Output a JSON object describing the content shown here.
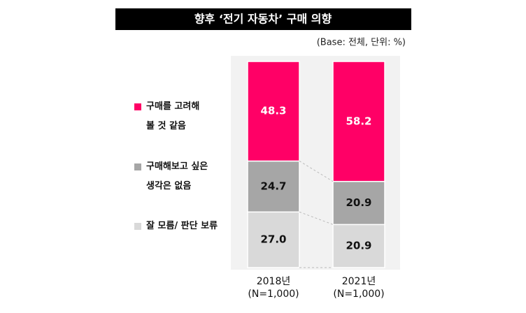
{
  "chart_data": {
    "type": "stacked_bar",
    "title": "향후 ‘전기 자동차’ 구매 의향",
    "subtitle": "(Base: 전체, 단위: %)",
    "categories": [
      "2018년\n(N=1,000)",
      "2021년\n(N=1,000)"
    ],
    "series": [
      {
        "name": "구매를 고려해\n볼 것 같음",
        "color": "#ff0066",
        "values": [
          48.3,
          58.2
        ],
        "value_labels": [
          "48.3",
          "58.2"
        ]
      },
      {
        "name": "구매해보고 싶은\n생각은 없음",
        "color": "#a6a6a6",
        "values": [
          24.7,
          20.9
        ],
        "value_labels": [
          "24.7",
          "20.9"
        ]
      },
      {
        "name": "잘 모름/ 판단 보류",
        "color": "#d9d9d9",
        "values": [
          27.0,
          20.9
        ],
        "value_labels": [
          "27.0",
          "20.9"
        ]
      }
    ],
    "ylim": [
      0,
      100
    ]
  }
}
